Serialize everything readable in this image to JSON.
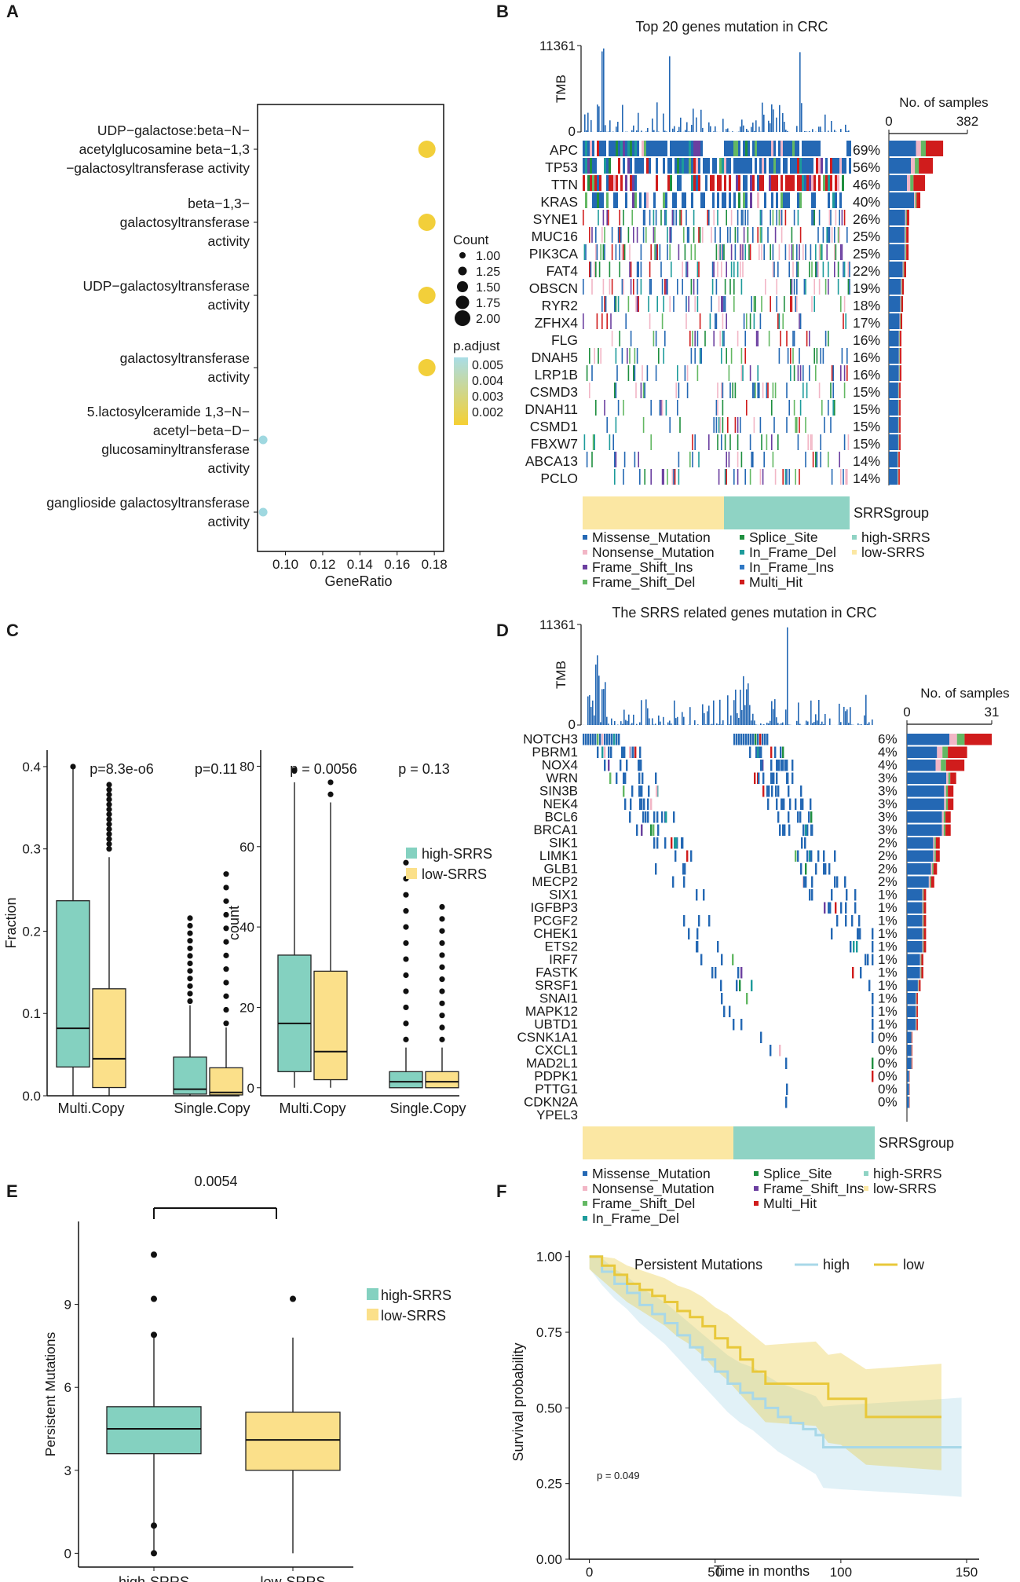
{
  "panels": {
    "a": "A",
    "b": "B",
    "c": "C",
    "d": "D",
    "e": "E",
    "f": "F"
  },
  "colors": {
    "high": "#8fd3c4",
    "low": "#fbe7a3",
    "high_box": "#84d1c0",
    "low_box": "#fbe08a",
    "dot": "#f2cf3a",
    "dot_low": "#9fd8e0",
    "missense": "#2468b4",
    "nonsense": "#f2b6c6",
    "frame_ins": "#6b3fa0",
    "frame_del": "#63b863",
    "splice": "#1f8f3f",
    "inframe_del": "#1d9b9b",
    "inframe_ins": "#2f78c4",
    "multi": "#d01c1c",
    "km_high": "#a8d8e8",
    "km_low": "#e8c83a"
  },
  "chart_data": [
    {
      "id": "A",
      "type": "scatter",
      "title": "",
      "xlabel": "GeneRatio",
      "ylabel": "",
      "xlim": [
        0.085,
        0.185
      ],
      "xticks": [
        "0.10",
        "0.12",
        "0.14",
        "0.16",
        "0.18"
      ],
      "categories": [
        [
          "UDP−galactose:beta−N−",
          "acetylglucosamine beta−1,3",
          "−galactosyltransferase activity"
        ],
        [
          "beta−1,3−",
          "galactosyltransferase",
          "activity"
        ],
        [
          "UDP−galactosyltransferase",
          "activity"
        ],
        [
          "galactosyltransferase",
          "activity"
        ],
        [
          "5.lactosylceramide 1,3−N−",
          "acetyl−beta−D−",
          "glucosaminyltransferase",
          "activity"
        ],
        [
          "ganglioside galactosyltransferase",
          "activity"
        ]
      ],
      "gene_ratio": [
        0.176,
        0.176,
        0.176,
        0.176,
        0.088,
        0.088
      ],
      "count": [
        2,
        2,
        2,
        2,
        1,
        1
      ],
      "p_adjust": [
        0.0015,
        0.0015,
        0.0015,
        0.0015,
        0.0052,
        0.0052
      ],
      "legend_count_title": "Count",
      "legend_count_labels": [
        "1.00",
        "1.25",
        "1.50",
        "1.75",
        "2.00"
      ],
      "legend_p_title": "p.adjust",
      "legend_p_labels": [
        "0.005",
        "0.004",
        "0.003",
        "0.002"
      ]
    },
    {
      "id": "B",
      "type": "heatmap",
      "title": "Top 20 genes mutation in CRC",
      "tmb_label": "TMB",
      "tmb_max": "11361",
      "tmb_min": "0",
      "samples_title": "No. of samples",
      "samples_ticks": [
        "0",
        "382"
      ],
      "genes": [
        "APC",
        "TP53",
        "TTN",
        "KRAS",
        "SYNE1",
        "MUC16",
        "PIK3CA",
        "FAT4",
        "OBSCN",
        "RYR2",
        "ZFHX4",
        "FLG",
        "DNAH5",
        "LRP1B",
        "CSMD3",
        "DNAH11",
        "CSMD1",
        "FBXW7",
        "ABCA13",
        "PCLO"
      ],
      "percents": [
        "69%",
        "56%",
        "46%",
        "40%",
        "26%",
        "25%",
        "25%",
        "22%",
        "19%",
        "18%",
        "17%",
        "16%",
        "16%",
        "16%",
        "15%",
        "15%",
        "15%",
        "15%",
        "14%",
        "14%"
      ],
      "sample_counts": [
        264,
        214,
        176,
        153,
        99,
        96,
        96,
        84,
        73,
        69,
        65,
        61,
        61,
        61,
        57,
        57,
        57,
        57,
        53,
        53
      ],
      "group_label": "SRRSgroup",
      "legend_col1": [
        "Missense_Mutation",
        "Nonsense_Mutation",
        "Frame_Shift_Ins",
        "Frame_Shift_Del"
      ],
      "legend_col2": [
        "Splice_Site",
        "In_Frame_Del",
        "In_Frame_Ins",
        "Multi_Hit"
      ],
      "legend_col3": [
        "high-SRRS",
        "low-SRRS"
      ]
    },
    {
      "id": "C",
      "type": "box",
      "left": {
        "ylabel": "Fraction",
        "ylim": [
          0,
          0.42
        ],
        "yticks": [
          "0.0",
          "0.1",
          "0.2",
          "0.3",
          "0.4"
        ],
        "categories": [
          "Multi.Copy",
          "Single.Copy"
        ],
        "pvalues": [
          "p=8.3e-o6",
          "p=0.11"
        ],
        "series": [
          {
            "name": "high-SRRS",
            "stats": [
              [
                0,
                0.035,
                0.082,
                0.237,
                0.4
              ],
              [
                0,
                0.002,
                0.008,
                0.047,
                0.11
              ]
            ]
          },
          {
            "name": "low-SRRS",
            "stats": [
              [
                0,
                0.01,
                0.045,
                0.13,
                0.29
              ],
              [
                0,
                0.001,
                0.004,
                0.034,
                0.083
              ]
            ]
          }
        ]
      },
      "right": {
        "ylabel": "count",
        "ylim": [
          -2,
          84
        ],
        "yticks": [
          "0",
          "20",
          "40",
          "60",
          "80"
        ],
        "categories": [
          "Multi.Copy",
          "Single.Copy"
        ],
        "pvalues": [
          "p = 0.0056",
          "p = 0.13"
        ],
        "series": [
          {
            "name": "high-SRRS",
            "stats": [
              [
                0,
                4,
                16,
                33,
                76
              ],
              [
                0,
                0,
                1.5,
                4,
                10
              ]
            ]
          },
          {
            "name": "low-SRRS",
            "stats": [
              [
                0,
                2,
                9,
                29,
                71
              ],
              [
                0,
                0,
                1.5,
                4,
                10
              ]
            ]
          }
        ]
      },
      "legend": [
        "high-SRRS",
        "low-SRRS"
      ]
    },
    {
      "id": "D",
      "type": "heatmap",
      "title": "The SRRS related genes mutation in CRC",
      "tmb_label": "TMB",
      "tmb_max": "11361",
      "tmb_min": "0",
      "samples_title": "No. of samples",
      "samples_ticks": [
        "0",
        "31"
      ],
      "genes": [
        "NOTCH3",
        "PBRM1",
        "NOX4",
        "WRN",
        "SIN3B",
        "NEK4",
        "BCL6",
        "BRCA1",
        "SIK1",
        "LIMK1",
        "GLB1",
        "MECP2",
        "SIX1",
        "IGFBP3",
        "PCGF2",
        "CHEK1",
        "ETS2",
        "IRF7",
        "FASTK",
        "SRSF1",
        "SNAI1",
        "MAPK12",
        "UBTD1",
        "CSNK1A1",
        "CXCL1",
        "MAD2L1",
        "PDPK1",
        "PTTG1",
        "CDKN2A",
        "YPEL3"
      ],
      "percents": [
        "6%",
        "4%",
        "4%",
        "3%",
        "3%",
        "3%",
        "3%",
        "3%",
        "2%",
        "2%",
        "2%",
        "2%",
        "1%",
        "1%",
        "1%",
        "1%",
        "1%",
        "1%",
        "1%",
        "1%",
        "1%",
        "1%",
        "1%",
        "0%",
        "0%",
        "0%",
        "0%",
        "0%",
        "0%",
        ""
      ],
      "sample_counts": [
        31,
        22,
        21,
        18,
        17,
        17,
        16,
        16,
        12,
        12,
        11,
        10,
        7,
        7,
        7,
        7,
        7,
        6,
        6,
        5,
        4,
        4,
        4,
        2,
        2,
        2,
        1,
        1,
        1,
        0
      ],
      "group_label": "SRRSgroup",
      "legend_col1": [
        "Missense_Mutation",
        "Nonsense_Mutation",
        "Frame_Shift_Del",
        "In_Frame_Del"
      ],
      "legend_col2": [
        "Splice_Site",
        "Frame_Shift_Ins",
        "Multi_Hit"
      ],
      "legend_col3": [
        "high-SRRS",
        "low-SRRS"
      ]
    },
    {
      "id": "E",
      "type": "box",
      "ylabel": "Persistent Mutations",
      "ylim": [
        -0.5,
        12
      ],
      "yticks": [
        "0",
        "3",
        "6",
        "9"
      ],
      "categories": [
        "high-SRRS",
        "low-SRRS"
      ],
      "stats": [
        [
          0,
          3.6,
          4.5,
          5.3,
          8
        ],
        [
          0,
          3,
          4.1,
          5.1,
          7.8
        ]
      ],
      "outliers": [
        [
          10.8,
          9.2,
          7.9,
          1,
          0
        ],
        [
          9.2
        ]
      ],
      "pvalue": "0.0054",
      "legend": [
        "high-SRRS",
        "low-SRRS"
      ]
    },
    {
      "id": "F",
      "type": "line",
      "legend_title": "Persistent Mutations",
      "legend": [
        "high",
        "low"
      ],
      "xlabel": "Time in months",
      "ylabel": "Survival probability",
      "xlim": [
        -8,
        155
      ],
      "ylim": [
        0,
        1.02
      ],
      "xticks": [
        "0",
        "50",
        "100",
        "150"
      ],
      "yticks": [
        "0.00",
        "0.25",
        "0.50",
        "0.75",
        "1.00"
      ],
      "pvalue": "p = 0.049",
      "series": [
        {
          "name": "high",
          "x": [
            0,
            5,
            10,
            15,
            20,
            25,
            30,
            35,
            40,
            45,
            50,
            55,
            60,
            65,
            70,
            75,
            80,
            85,
            90,
            93,
            100,
            110,
            120,
            130,
            140,
            148
          ],
          "y": [
            1,
            0.95,
            0.91,
            0.88,
            0.84,
            0.81,
            0.78,
            0.74,
            0.7,
            0.66,
            0.62,
            0.58,
            0.55,
            0.53,
            0.5,
            0.47,
            0.45,
            0.43,
            0.41,
            0.37,
            0.37,
            0.37,
            0.37,
            0.37,
            0.37,
            0.37
          ]
        },
        {
          "name": "low",
          "x": [
            0,
            5,
            10,
            15,
            20,
            25,
            30,
            35,
            40,
            45,
            50,
            55,
            60,
            65,
            70,
            80,
            90,
            95,
            100,
            110,
            120,
            130,
            140
          ],
          "y": [
            1,
            0.97,
            0.94,
            0.91,
            0.89,
            0.87,
            0.85,
            0.82,
            0.8,
            0.77,
            0.73,
            0.7,
            0.66,
            0.62,
            0.58,
            0.58,
            0.58,
            0.53,
            0.53,
            0.47,
            0.47,
            0.47,
            0.47
          ]
        }
      ]
    }
  ]
}
